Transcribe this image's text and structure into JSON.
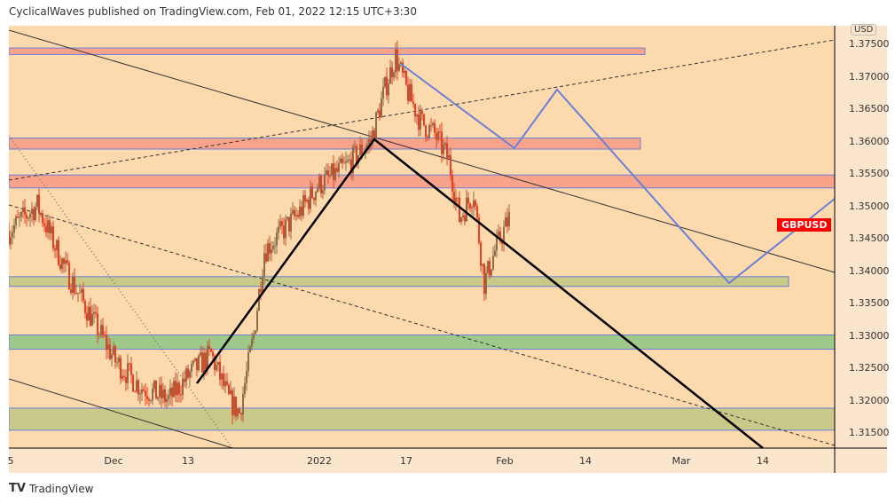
{
  "header": {
    "publish_line": "CyclicalWaves published on TradingView.com, Feb 01, 2022 12:15 UTC+3:30"
  },
  "symbol": "GBPUSD",
  "currency": "USD",
  "brand": "TradingView",
  "colors": {
    "background": "#fbe5cc",
    "up": "#8d6e4a",
    "down": "#f23c1f",
    "zone_salmon": "#f9a48a",
    "zone_olive": "#c9c98a",
    "zone_green": "#9ec98a",
    "path": "#6a7fd8"
  },
  "price_axis": [
    "1.37500",
    "1.37000",
    "1.36500",
    "1.36000",
    "1.35500",
    "1.35000",
    "1.34500",
    "1.34000",
    "1.33500",
    "1.33000",
    "1.32500",
    "1.32000",
    "1.31500"
  ],
  "time_axis": [
    {
      "label": "5"
    },
    {
      "label": "Dec"
    },
    {
      "label": "13"
    },
    {
      "label": "2022"
    },
    {
      "label": "17"
    },
    {
      "label": "Feb"
    },
    {
      "label": "14"
    },
    {
      "label": "Mar"
    },
    {
      "label": "14"
    }
  ],
  "chart_data": {
    "type": "candlestick",
    "symbol": "GBPUSD",
    "ylim": [
      1.312,
      1.3765
    ],
    "price_path": [
      [
        0,
        1.346
      ],
      [
        8,
        1.35
      ],
      [
        16,
        1.34
      ],
      [
        22,
        1.334
      ],
      [
        30,
        1.326
      ],
      [
        37,
        1.322
      ],
      [
        45,
        1.32
      ],
      [
        51,
        1.324
      ],
      [
        57,
        1.327
      ],
      [
        62,
        1.32
      ],
      [
        65,
        1.318
      ],
      [
        69,
        1.33
      ],
      [
        72,
        1.343
      ],
      [
        82,
        1.349
      ],
      [
        87,
        1.353
      ],
      [
        95,
        1.356
      ],
      [
        102,
        1.36
      ],
      [
        106,
        1.368
      ],
      [
        109,
        1.373
      ],
      [
        112,
        1.368
      ],
      [
        116,
        1.363
      ],
      [
        120,
        1.361
      ],
      [
        124,
        1.357
      ],
      [
        127,
        1.348
      ],
      [
        131,
        1.352
      ],
      [
        134,
        1.338
      ],
      [
        137,
        1.343
      ],
      [
        141,
        1.348
      ]
    ],
    "zones": [
      {
        "type": "salmon",
        "from": 1.3733,
        "to": 1.3743,
        "extend": "partial"
      },
      {
        "type": "salmon",
        "from": 1.3587,
        "to": 1.3604,
        "extend": "partial"
      },
      {
        "type": "salmon",
        "from": 1.3527,
        "to": 1.3547,
        "extend": "full"
      },
      {
        "type": "olive",
        "from": 1.3375,
        "to": 1.339,
        "extend": "partial"
      },
      {
        "type": "green",
        "from": 1.3278,
        "to": 1.33,
        "extend": "full"
      },
      {
        "type": "olive",
        "from": 1.3153,
        "to": 1.3187,
        "extend": "full"
      }
    ]
  }
}
